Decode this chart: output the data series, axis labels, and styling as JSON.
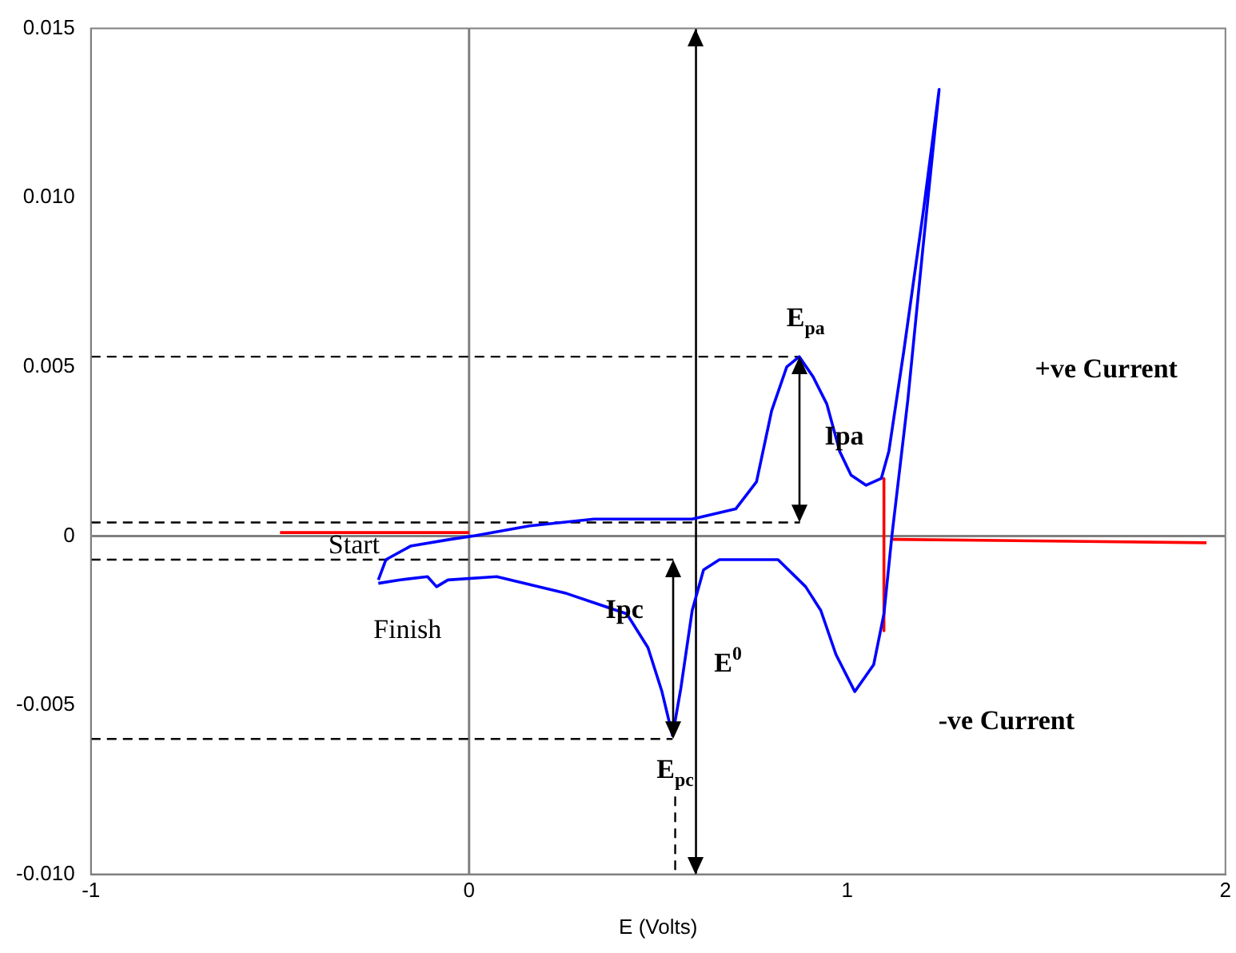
{
  "chart_data": {
    "type": "line",
    "xlabel": "E (Volts)",
    "xlim": [
      -1,
      2
    ],
    "xticks": [
      -1,
      0,
      1,
      2
    ],
    "ylim": [
      -0.01,
      0.015
    ],
    "yticks": [
      {
        "value": -0.01,
        "label": "-0.010"
      },
      -0.005,
      0,
      0.005,
      {
        "value": 0.01,
        "label": "0.010"
      },
      0.015
    ],
    "grid": false,
    "legend": false,
    "marker": "none",
    "ref_lines": [
      {
        "axis": "x",
        "value": 0,
        "label": null,
        "color": "#808080"
      },
      {
        "axis": "y",
        "value": 0,
        "label": null,
        "color": "#808080"
      },
      {
        "axis": "x",
        "value": 0.6,
        "label": null,
        "color": "#000000"
      }
    ],
    "series": [
      {
        "color": "#0000ff",
        "line_style": "solid",
        "x": [
          -0.24,
          -0.22,
          -0.155,
          -0.05,
          0.01,
          0.16,
          0.33,
          0.49,
          0.59,
          0.705,
          0.76,
          0.8,
          0.84,
          0.873,
          0.91,
          0.946,
          0.98,
          1.01,
          1.05,
          1.09,
          1.11,
          1.15,
          1.2,
          1.243,
          1.2,
          1.16,
          1.118,
          1.097,
          1.07,
          1.02,
          0.97,
          0.93,
          0.89,
          0.817,
          0.662,
          0.62,
          0.59,
          0.56,
          0.538,
          0.51,
          0.473,
          0.417,
          0.258,
          0.073,
          -0.056,
          -0.086,
          -0.11,
          -0.185,
          -0.24
        ],
        "values": [
          -0.0013,
          -0.0007,
          -0.0003,
          -0.0001,
          0,
          0.0003,
          0.0005,
          0.0005,
          0.0005,
          0.0008,
          0.0016,
          0.0037,
          0.005,
          0.0053,
          0.0047,
          0.0039,
          0.0025,
          0.0018,
          0.0015,
          0.0017,
          0.0025,
          0.0055,
          0.0095,
          0.0132,
          0.0085,
          0.004,
          0,
          -0.0023,
          -0.0038,
          -0.0046,
          -0.0035,
          -0.0022,
          -0.0015,
          -0.0007,
          -0.0007,
          -0.001,
          -0.0022,
          -0.0045,
          -0.0059,
          -0.0046,
          -0.0033,
          -0.0023,
          -0.0017,
          -0.0012,
          -0.0013,
          -0.0015,
          -0.0012,
          -0.0013,
          -0.0014
        ]
      },
      {
        "color": "#ff0000",
        "line_style": "solid",
        "x": [
          -0.5,
          -0.25,
          0,
          0.5,
          1.097,
          1.097,
          1.11,
          1.12,
          1.95
        ],
        "values": [
          0.0001,
          0.0001,
          0.0001,
          null,
          0.0017,
          -0.0028,
          null,
          -0.0001,
          -0.0002
        ]
      },
      {
        "color": "#000000",
        "line_style": "dashed",
        "x": [
          -1,
          0.873
        ],
        "values": [
          0.0053,
          0.0053
        ]
      },
      {
        "color": "#000000",
        "line_style": "dashed",
        "x": [
          -1,
          0.875
        ],
        "values": [
          0.0004,
          0.0004
        ]
      },
      {
        "color": "#000000",
        "line_style": "dashed",
        "x": [
          -1,
          0.54
        ],
        "values": [
          -0.0007,
          -0.0007
        ]
      },
      {
        "color": "#000000",
        "line_style": "dashed",
        "x": [
          -1,
          0.538
        ],
        "values": [
          -0.006,
          -0.006
        ]
      },
      {
        "color": "#000000",
        "line_style": "dashed",
        "x": [
          0.545,
          0.545
        ],
        "values": [
          -0.0077,
          -0.01
        ]
      }
    ],
    "annotations": [
      "Start",
      "Finish",
      "E$_{pa}$",
      "Ipa",
      "+ve Current",
      {
        "text": "Ipc",
        "x": 0.538,
        "y": -0.0059
      },
      {
        "text": "E$^{0}$",
        "x": 0.6,
        "y": -0.0038
      },
      "E$_{pc}$",
      "-ve Current"
    ]
  }
}
